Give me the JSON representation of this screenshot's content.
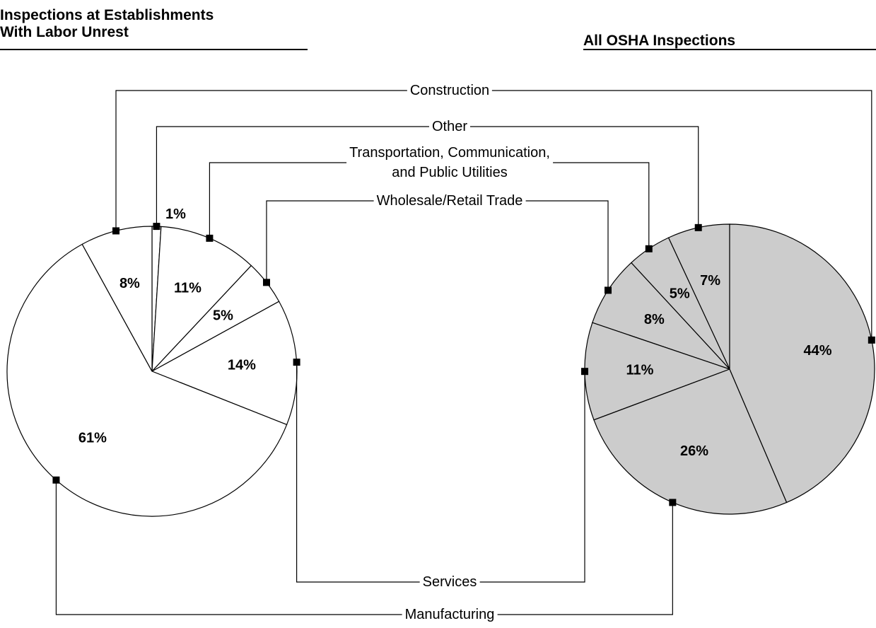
{
  "chart_data": {
    "type": "pie",
    "categories": [
      "Construction",
      "Other",
      "Transportation, Communication,\nand Public Utilities",
      "Wholesale/Retail Trade",
      "Services",
      "Manufacturing"
    ],
    "series": [
      {
        "name": "Inspections at Establishments\nWith Labor Unrest",
        "color": "#ffffff",
        "values": [
          8,
          1,
          11,
          5,
          14,
          61
        ],
        "value_labels": [
          "8%",
          "1%",
          "11%",
          "5%",
          "14%",
          "61%"
        ]
      },
      {
        "name": "All OSHA Inspections",
        "color": "#cccccc",
        "values": [
          44,
          7,
          5,
          8,
          11,
          26
        ],
        "value_labels": [
          "44%",
          "7%",
          "5%",
          "8%",
          "11%",
          "26%"
        ]
      }
    ]
  }
}
